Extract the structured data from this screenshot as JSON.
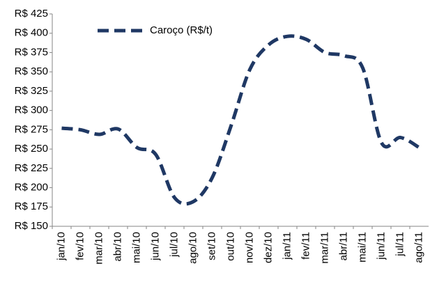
{
  "chart_data": {
    "type": "line",
    "categories": [
      "jan/10",
      "fev/10",
      "mar/10",
      "abr/10",
      "mai/10",
      "jun/10",
      "jul/10",
      "ago/10",
      "set/10",
      "out/10",
      "nov/10",
      "dez/10",
      "jan/11",
      "fev/11",
      "mar/11",
      "abr/11",
      "mai/11",
      "jun/11",
      "jul/11",
      "ago/11"
    ],
    "series": [
      {
        "name": "Caroço (R$/t)",
        "color": "#1f3864",
        "values": [
          277,
          275,
          269,
          276,
          252,
          243,
          187,
          182,
          213,
          280,
          353,
          385,
          396,
          392,
          375,
          371,
          355,
          258,
          265,
          252
        ]
      }
    ],
    "ylim": [
      150,
      425
    ],
    "yticks": [
      {
        "value": 150,
        "label": "R$ 150"
      },
      {
        "value": 175,
        "label": "R$ 175"
      },
      {
        "value": 200,
        "label": "R$ 200"
      },
      {
        "value": 225,
        "label": "R$ 225"
      },
      {
        "value": 250,
        "label": "R$ 250"
      },
      {
        "value": 275,
        "label": "R$ 275"
      },
      {
        "value": 300,
        "label": "R$ 300"
      },
      {
        "value": 325,
        "label": "R$ 325"
      },
      {
        "value": 350,
        "label": "R$ 350"
      },
      {
        "value": 375,
        "label": "R$ 375"
      },
      {
        "value": 400,
        "label": "R$ 400"
      },
      {
        "value": 425,
        "label": "R$ 425"
      }
    ],
    "grid": false,
    "legend": "top-left"
  }
}
